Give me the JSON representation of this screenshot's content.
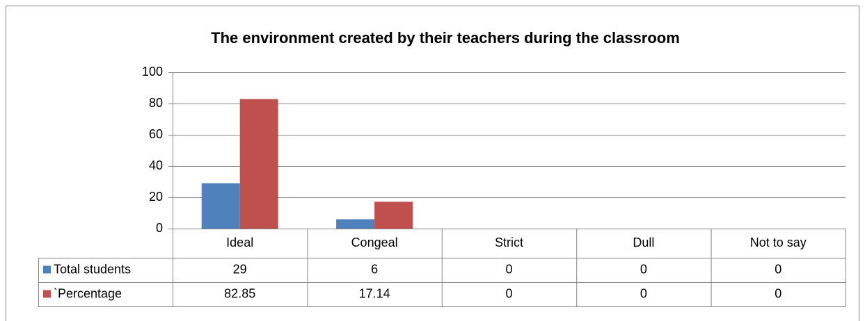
{
  "chart_data": {
    "type": "bar",
    "title": "The environment created by their teachers during the classroom",
    "categories": [
      "Ideal",
      "Congeal",
      "Strict",
      "Dull",
      "Not to say"
    ],
    "series": [
      {
        "name": "Total students",
        "color": "#4f81bd",
        "values": [
          29,
          6,
          0,
          0,
          0
        ]
      },
      {
        "name": "`Percentage",
        "color": "#c0504d",
        "values": [
          82.85,
          17.14,
          0,
          0,
          0
        ]
      }
    ],
    "ylim": [
      0,
      100
    ],
    "yticks": [
      0,
      20,
      40,
      60,
      80,
      100
    ],
    "grid": true,
    "data_table": true
  }
}
